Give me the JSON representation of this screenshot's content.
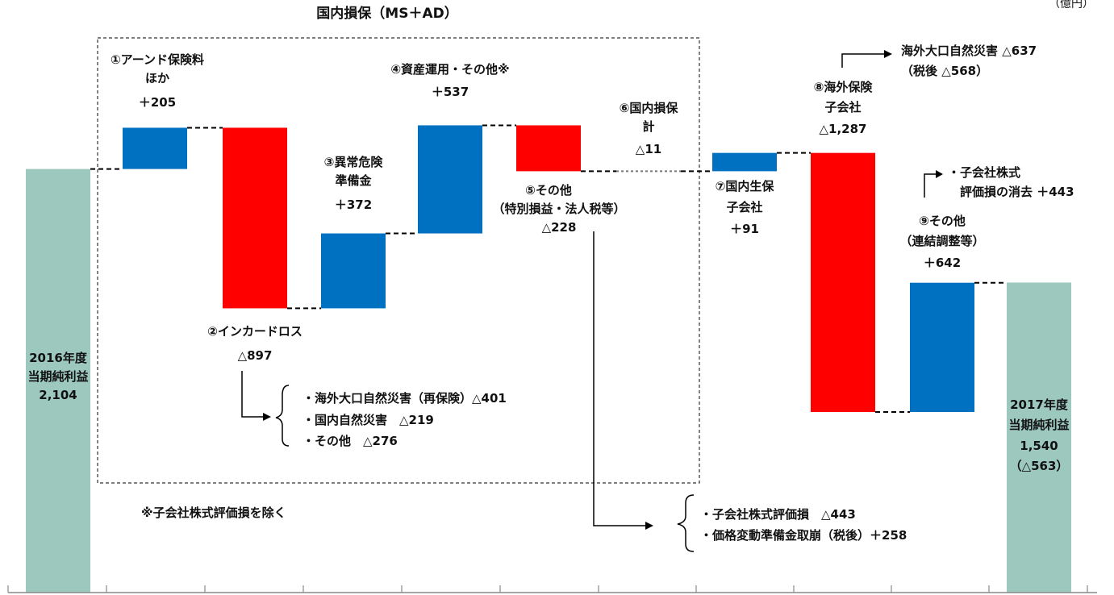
{
  "title": "国内損保（MS＋AD）",
  "unit": "（億円）",
  "note": "※子会社株式評価損を除く",
  "colors": {
    "increase": "#0070C0",
    "decrease": "#FF0000",
    "total": "#9CC8BE",
    "connector": "#000000",
    "axis": "#888888"
  },
  "chart_data": {
    "type": "bar",
    "subtype": "waterfall",
    "title": "国内損保（MS＋AD）",
    "unit": "億円",
    "steps": [
      {
        "label_lines": [
          "2016年度",
          "当期純利益",
          "2,104"
        ],
        "value": 2104,
        "kind": "total",
        "value_text": "2,104"
      },
      {
        "label_lines": [
          "①アーンド保険料",
          "ほか"
        ],
        "value": 205,
        "kind": "increase",
        "value_text": "＋205"
      },
      {
        "label_lines": [
          "②インカードロス"
        ],
        "value": -897,
        "kind": "decrease",
        "value_text": "△897"
      },
      {
        "label_lines": [
          "③異常危険",
          "準備金"
        ],
        "value": 372,
        "kind": "increase",
        "value_text": "＋372"
      },
      {
        "label_lines": [
          "④資産運用・その他※"
        ],
        "value": 537,
        "kind": "increase",
        "value_text": "＋537"
      },
      {
        "label_lines": [
          "⑤その他",
          "（特別損益・法人税等）"
        ],
        "value": -228,
        "kind": "decrease",
        "value_text": "△228"
      },
      {
        "label_lines": [
          "⑥国内損保",
          "計"
        ],
        "value": -11,
        "kind": "subtotal",
        "value_text": "△11"
      },
      {
        "label_lines": [
          "⑦国内生保",
          "子会社"
        ],
        "value": 91,
        "kind": "increase",
        "value_text": "＋91"
      },
      {
        "label_lines": [
          "⑧海外保険",
          "子会社"
        ],
        "value": -1287,
        "kind": "decrease",
        "value_text": "△1,287"
      },
      {
        "label_lines": [
          "⑨その他",
          "（連結調整等）"
        ],
        "value": 642,
        "kind": "increase",
        "value_text": "＋642"
      },
      {
        "label_lines": [
          "2017年度",
          "当期純利益",
          "1,540",
          "（△563）"
        ],
        "value": 1540,
        "kind": "total",
        "value_text": "1,540"
      }
    ],
    "callouts": {
      "incurred_loss": [
        "・海外大口自然災害（再保険）△401",
        "・国内自然災害　△219",
        "・その他　△276"
      ],
      "other": [
        "・子会社株式評価損　△443",
        "・価格変動準備金取崩（税後）＋258"
      ],
      "overseas_line1": "海外大口自然災害 △637",
      "overseas_line2": "（税後 △568）",
      "consolidation_line1": "・子会社株式",
      "consolidation_line2": "評価損の消去 ＋443"
    }
  }
}
